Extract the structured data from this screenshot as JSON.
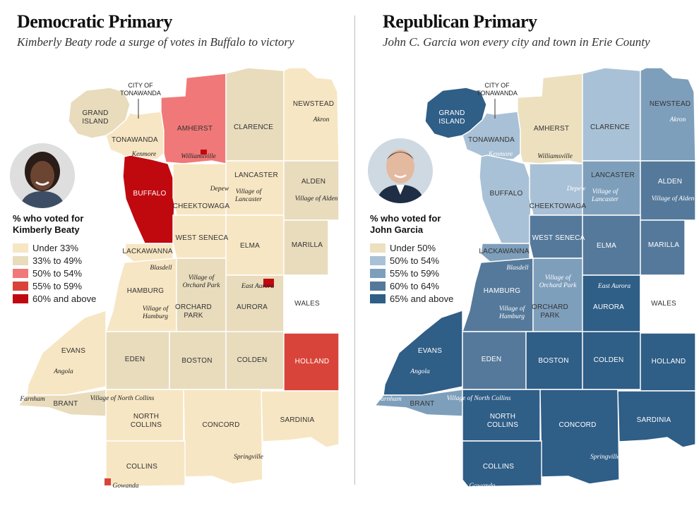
{
  "panels": {
    "dem": {
      "title": "Democratic Primary",
      "subtitle": "Kimberly Beaty rode a surge of votes in Buffalo to victory",
      "legend_title_line1": "% who voted for",
      "legend_title_line2": "Kimberly Beaty",
      "legend": [
        {
          "label": "Under 33%",
          "color": "#f7e6c3"
        },
        {
          "label": "33% to 49%",
          "color": "#e8dcbd"
        },
        {
          "label": "50% to 54%",
          "color": "#f07878"
        },
        {
          "label": "55% to 59%",
          "color": "#d9443a"
        },
        {
          "label": "60% and above",
          "color": "#c0090f"
        }
      ],
      "portrait_icon": "person-portrait-icon"
    },
    "rep": {
      "title": "Republican Primary",
      "subtitle": "John C. Garcia won every city and town in Erie County",
      "legend_title_line1": "% who voted for",
      "legend_title_line2": "John Garcia",
      "legend": [
        {
          "label": "Under 50%",
          "color": "#ede0bf"
        },
        {
          "label": "50% to 54%",
          "color": "#a9c1d6"
        },
        {
          "label": "55% to 59%",
          "color": "#7e9fbb"
        },
        {
          "label": "60% to 64%",
          "color": "#55799b"
        },
        {
          "label": "65% and above",
          "color": "#2f5e87"
        }
      ],
      "portrait_icon": "person-portrait-icon"
    }
  },
  "map": {
    "city_tag_line1": "CITY OF",
    "city_tag_line2": "TONAWANDA",
    "towns": {
      "grand_island": [
        "GRAND",
        "ISLAND"
      ],
      "tonawanda": "TONAWANDA",
      "amherst": "AMHERST",
      "clarence": "CLARENCE",
      "newstead": "NEWSTEAD",
      "buffalo": "BUFFALO",
      "cheektowaga": "CHEEKTOWAGA",
      "lancaster": "LANCASTER",
      "alden": "ALDEN",
      "lackawanna": "LACKAWANNA",
      "west_seneca": "WEST SENECA",
      "elma": "ELMA",
      "marilla": "MARILLA",
      "hamburg": "HAMBURG",
      "orchard_park": [
        "ORCHARD",
        "PARK"
      ],
      "aurora": "AURORA",
      "wales": "WALES",
      "evans": "EVANS",
      "eden": "EDEN",
      "boston": "BOSTON",
      "colden": "COLDEN",
      "holland": "HOLLAND",
      "brant": "BRANT",
      "north_collins": [
        "NORTH",
        "COLLINS"
      ],
      "concord": "CONCORD",
      "sardinia": "SARDINIA",
      "collins": "COLLINS"
    },
    "villages": {
      "kenmore": "Kenmore",
      "williamsville": "Williamsville",
      "akron": "Akron",
      "depew": "Depew",
      "lancaster": [
        "Village of",
        "Lancaster"
      ],
      "alden": "Village of Alden",
      "blasdell": "Blasdell",
      "orchard_park": [
        "Village of",
        "Orchard Park"
      ],
      "east_aurora": "East Aurora",
      "hamburg": [
        "Village of",
        "Hamburg"
      ],
      "angola": "Angola",
      "farnham": "Farnham",
      "north_collins": "Village of North Collins",
      "springville": "Springville",
      "gowanda": "Gowanda"
    },
    "dem_colors": {
      "grand_island": "#e8dcbd",
      "tonawanda": "#f7e6c3",
      "amherst": "#f07878",
      "clarence": "#e8dcbd",
      "newstead": "#f7e6c3",
      "buffalo": "#c0090f",
      "cheektowaga": "#f7e6c3",
      "lancaster": "#f7e6c3",
      "alden": "#e8dcbd",
      "lackawanna": "#f7e6c3",
      "west_seneca": "#f7e6c3",
      "elma": "#f7e6c3",
      "marilla": "#e8dcbd",
      "hamburg": "#f7e6c3",
      "orchard_park": "#e8dcbd",
      "aurora": "#e8dcbd",
      "wales": "#ffffff",
      "evans": "#f7e6c3",
      "eden": "#e8dcbd",
      "boston": "#e8dcbd",
      "colden": "#e8dcbd",
      "holland": "#d9443a",
      "brant": "#e8dcbd",
      "north_collins": "#f7e6c3",
      "concord": "#f7e6c3",
      "sardinia": "#f7e6c3",
      "collins": "#f7e6c3"
    },
    "rep_colors": {
      "grand_island": "#2f5e87",
      "tonawanda": "#a9c1d6",
      "amherst": "#ede0bf",
      "clarence": "#a9c1d6",
      "newstead": "#7e9fbb",
      "buffalo": "#a9c1d6",
      "cheektowaga": "#a9c1d6",
      "lancaster": "#7e9fbb",
      "alden": "#55799b",
      "lackawanna": "#7e9fbb",
      "west_seneca": "#55799b",
      "elma": "#55799b",
      "marilla": "#55799b",
      "hamburg": "#55799b",
      "orchard_park": "#7e9fbb",
      "aurora": "#2f5e87",
      "wales": "#ffffff",
      "evans": "#2f5e87",
      "eden": "#55799b",
      "boston": "#2f5e87",
      "colden": "#2f5e87",
      "holland": "#2f5e87",
      "brant": "#7e9fbb",
      "north_collins": "#2f5e87",
      "concord": "#2f5e87",
      "sardinia": "#2f5e87",
      "collins": "#2f5e87"
    },
    "dem_village_marks": {
      "williamsville": "#c0090f",
      "east_aurora": "#c0090f",
      "gowanda": "#d9443a"
    }
  }
}
